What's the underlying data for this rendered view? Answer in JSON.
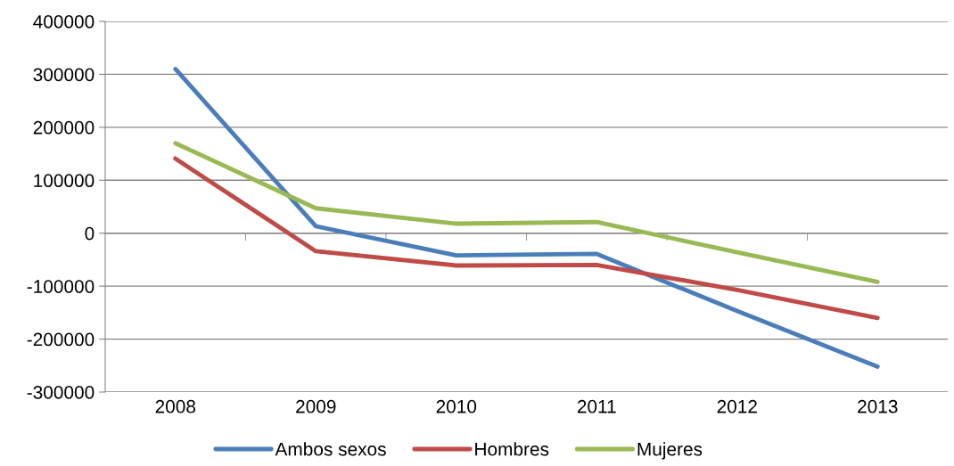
{
  "chart_data": {
    "type": "line",
    "categories": [
      "2008",
      "2009",
      "2010",
      "2011",
      "2012",
      "2013"
    ],
    "series": [
      {
        "name": "Ambos sexos",
        "color": "#4a7ebb",
        "values": [
          310000,
          13000,
          -42000,
          -39000,
          -147000,
          -252000
        ]
      },
      {
        "name": "Hombres",
        "color": "#be4b48",
        "values": [
          141000,
          -34000,
          -61000,
          -60000,
          -107000,
          -160000
        ]
      },
      {
        "name": "Mujeres",
        "color": "#98b954",
        "values": [
          170000,
          47000,
          18000,
          21000,
          -36000,
          -92000
        ]
      }
    ],
    "ylim": [
      -300000,
      400000
    ],
    "yticks": [
      -300000,
      -200000,
      -100000,
      0,
      100000,
      200000,
      300000,
      400000
    ],
    "grid": "y",
    "legend": "bottom",
    "marker": "none",
    "line_style": "solid"
  }
}
